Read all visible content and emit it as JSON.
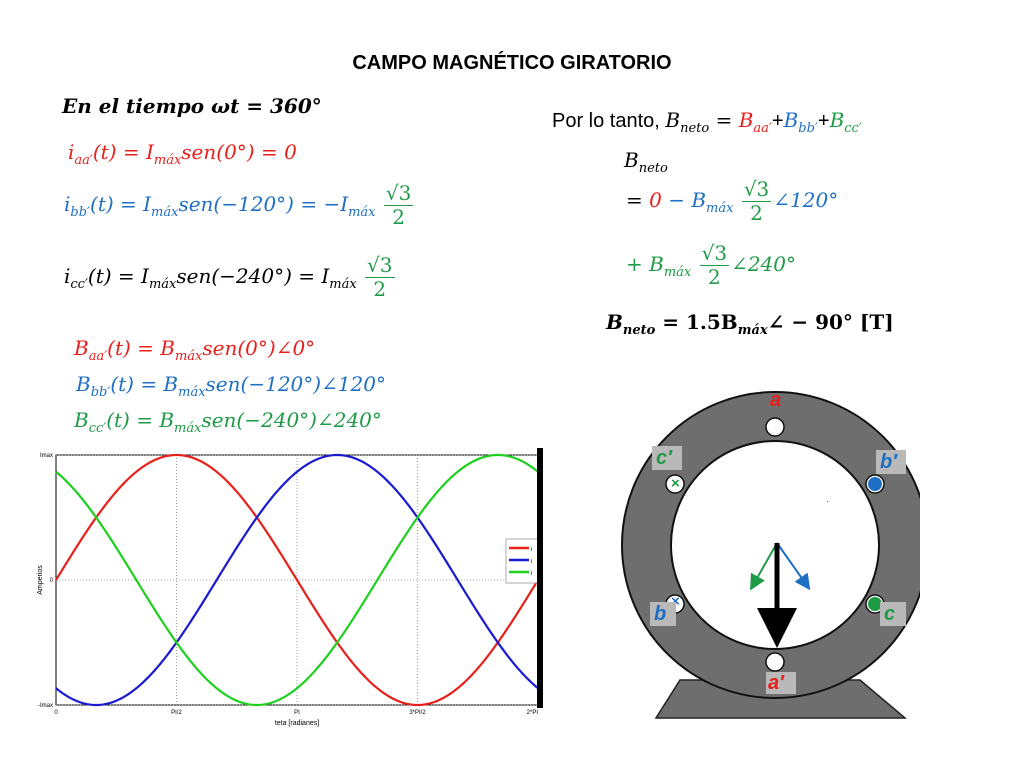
{
  "title": "CAMPO MAGNÉTICO GIRATORIO",
  "time_label": "En el tiempo ωt = 360°",
  "currents": [
    {
      "lhs": "i",
      "sub": "aa′",
      "rhs": "(t) = I",
      "rhs_sub": "máx",
      "rest": "sen(0°) = 0"
    },
    {
      "lhs": "i",
      "sub": "bb′",
      "rhs": "(t) = I",
      "rhs_sub": "máx",
      "rest": "sen(−120°) = −I",
      "rest_sub": "máx",
      "frac_num": "√3",
      "frac_den": "2"
    },
    {
      "lhs": "i",
      "sub": "cc′",
      "rhs": "(t) = I",
      "rhs_sub": "máx",
      "rest": "sen(−240°) = I",
      "rest_sub": "máx",
      "frac_num": "√3",
      "frac_den": "2"
    }
  ],
  "fields": [
    {
      "lhs": "B",
      "sub": "aa′",
      "rhs": "(t) = B",
      "rhs_sub": "máx",
      "rest": "sen(0°)∠0°"
    },
    {
      "lhs": "B",
      "sub": "bb′",
      "rhs": "(t) = B",
      "rhs_sub": "máx",
      "rest": "sen(−120°)∠120°"
    },
    {
      "lhs": "B",
      "sub": "cc′",
      "rhs": "(t) = B",
      "rhs_sub": "máx",
      "rest": "sen(−240°)∠240°"
    }
  ],
  "right": {
    "intro": "Por lo tanto, ",
    "bnet": "B",
    "bnet_sub": "neto",
    "eq1": "= ",
    "zero": "0",
    "minus": " − B",
    "max_sub": "máx",
    "angle1": "∠120°",
    "plus": "+ B",
    "angle2": "∠240°",
    "frac_num": "√3",
    "frac_den": "2",
    "result": "B",
    "result_sub": "neto",
    "result_rest": " = 1.5B",
    "result_max": "máx",
    "result_tail": "∠ − 90° [T]",
    "sum_a": "B",
    "sum_a_sub": "aa′",
    "sum_b": "B",
    "sum_b_sub": "bb′",
    "sum_c": "B",
    "sum_c_sub": "cc′",
    "plus_sign": "+"
  },
  "chart_data": {
    "type": "line",
    "xlabel": "teta [radianes]",
    "ylabel": "Amperios",
    "x_ticks": [
      "0",
      "PI/2",
      "PI",
      "3*PI/2",
      "2*PI"
    ],
    "y_ticks": [
      "Imax",
      "0",
      "-Imax"
    ],
    "xlim": [
      0,
      6.2832
    ],
    "ylim": [
      -1,
      1
    ],
    "grid": true,
    "legend": "right",
    "legend_entries": [
      "i",
      "i",
      "i"
    ],
    "series": [
      {
        "phase_deg": 0,
        "color": "#e8201c"
      },
      {
        "phase_deg": -120,
        "color": "#1a1ad0"
      },
      {
        "phase_deg": -240,
        "color": "#1ed01e"
      }
    ],
    "marker_x": 6.2832
  },
  "machine": {
    "labels": {
      "a": "a",
      "a_prime": "a′",
      "b": "b",
      "b_prime": "b′",
      "c": "c",
      "c_prime": "c′"
    },
    "cross": "×",
    "dot_mark": "·"
  }
}
